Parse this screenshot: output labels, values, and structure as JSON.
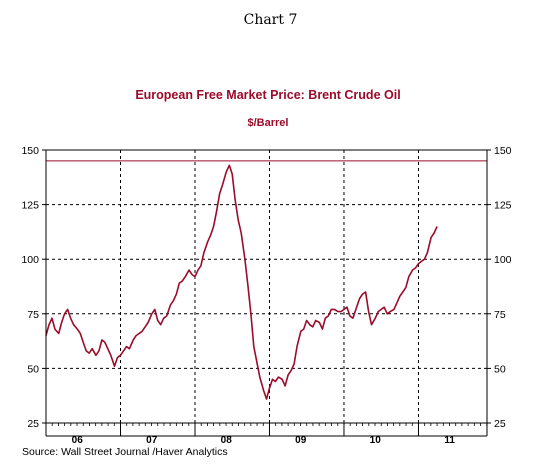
{
  "header": {
    "title": "Chart 7"
  },
  "source": "Source:  Wall Street Journal /Haver Analytics",
  "chart_data": {
    "type": "line",
    "title": "European Free Market Price: Brent Crude Oil",
    "subtitle": "$/Barrel",
    "xlabel": "",
    "ylabel": "",
    "xlim": [
      2006.0,
      2011.92
    ],
    "ylim": [
      25,
      150
    ],
    "yticks": [
      25,
      50,
      75,
      100,
      125,
      150
    ],
    "ytick_labels": [
      "25",
      "50",
      "75",
      "100",
      "125",
      "150"
    ],
    "axes": "left-and-right",
    "xtick_labels": [
      "06",
      "07",
      "08",
      "09",
      "10",
      "11"
    ],
    "xtick_positions": [
      2006.5,
      2007.5,
      2008.5,
      2009.5,
      2010.5,
      2011.5
    ],
    "grid": "dashed vertical at year boundaries, dashed horizontal at 75, 100, 125",
    "reference_line": {
      "y": 145,
      "color": "#9b0b2a"
    },
    "line_color": "#9b0b2a",
    "series": [
      {
        "x": [
          2006.0,
          2006.04,
          2006.08,
          2006.12,
          2006.17,
          2006.21,
          2006.25,
          2006.29,
          2006.33,
          2006.37,
          2006.42,
          2006.46,
          2006.5,
          2006.54,
          2006.58,
          2006.62,
          2006.67,
          2006.71,
          2006.75,
          2006.79,
          2006.83,
          2006.87,
          2006.92,
          2006.96,
          2007.0,
          2007.04,
          2007.08,
          2007.12,
          2007.17,
          2007.21,
          2007.25,
          2007.29,
          2007.33,
          2007.37,
          2007.42,
          2007.46,
          2007.5,
          2007.54,
          2007.58,
          2007.62,
          2007.67,
          2007.71,
          2007.75,
          2007.79,
          2007.83,
          2007.87,
          2007.92,
          2007.96,
          2008.0,
          2008.04,
          2008.08,
          2008.12,
          2008.17,
          2008.21,
          2008.25,
          2008.29,
          2008.33,
          2008.37,
          2008.42,
          2008.46,
          2008.5,
          2008.54,
          2008.58,
          2008.62,
          2008.67,
          2008.71,
          2008.75,
          2008.79,
          2008.83,
          2008.87,
          2008.92,
          2008.96,
          2009.0,
          2009.04,
          2009.08,
          2009.12,
          2009.17,
          2009.21,
          2009.25,
          2009.29,
          2009.33,
          2009.37,
          2009.42,
          2009.46,
          2009.5,
          2009.54,
          2009.58,
          2009.62,
          2009.67,
          2009.71,
          2009.75,
          2009.79,
          2009.83,
          2009.87,
          2009.92,
          2009.96,
          2010.0,
          2010.04,
          2010.08,
          2010.12,
          2010.17,
          2010.21,
          2010.25,
          2010.29,
          2010.33,
          2010.37,
          2010.42,
          2010.46,
          2010.5,
          2010.54,
          2010.58,
          2010.62,
          2010.67,
          2010.71,
          2010.75,
          2010.79,
          2010.83,
          2010.87,
          2010.92,
          2010.96,
          2011.0,
          2011.04,
          2011.08,
          2011.12,
          2011.17,
          2011.21,
          2011.25
        ],
        "y": [
          65,
          70,
          73,
          68,
          66,
          71,
          75,
          77,
          73,
          70,
          68,
          66,
          62,
          58,
          57,
          59,
          56,
          58,
          63,
          62,
          59,
          56,
          51,
          55,
          56,
          58,
          60,
          59,
          63,
          65,
          66,
          67,
          69,
          71,
          75,
          77,
          72,
          70,
          73,
          74,
          79,
          81,
          84,
          89,
          90,
          92,
          95,
          93,
          92,
          95,
          97,
          103,
          108,
          111,
          115,
          122,
          130,
          134,
          140,
          143,
          139,
          127,
          118,
          112,
          100,
          88,
          75,
          60,
          53,
          46,
          40,
          36,
          41,
          45,
          44,
          46,
          45,
          42,
          47,
          49,
          52,
          60,
          67,
          68,
          72,
          70,
          69,
          72,
          71,
          68,
          73,
          74,
          77,
          77,
          76,
          76,
          77,
          78,
          74,
          73,
          78,
          82,
          84,
          85,
          76,
          70,
          73,
          76,
          77,
          78,
          75,
          76,
          77,
          80,
          83,
          85,
          87,
          92,
          95,
          96,
          98,
          99,
          100,
          103,
          110,
          112,
          115
        ]
      }
    ]
  }
}
